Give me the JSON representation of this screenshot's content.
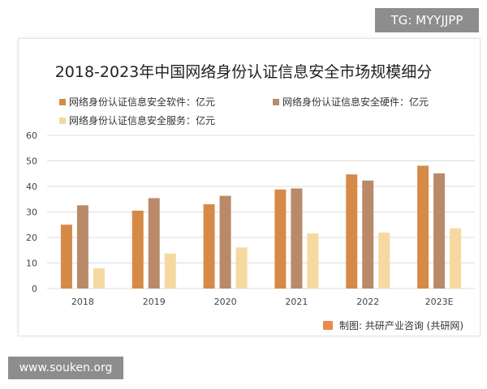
{
  "watermark_top": "TG: MYYJJPP",
  "watermark_bottom": "www.souken.org",
  "source": "制图: 共研产业咨询 (共研网)",
  "chart_data": {
    "type": "bar",
    "title": "2018-2023年中国网络身份认证信息安全市场规模细分",
    "categories": [
      "2018",
      "2019",
      "2020",
      "2021",
      "2022",
      "2023E"
    ],
    "series": [
      {
        "name": "网络身份认证信息安全软件：亿元",
        "color": "#d68a48",
        "values": [
          25,
          30.5,
          33,
          38.8,
          44.7,
          48.1
        ]
      },
      {
        "name": "网络身份认证信息安全硬件：亿元",
        "color": "#b98a6a",
        "values": [
          32.6,
          35.4,
          36.3,
          39.2,
          42.3,
          45.1
        ]
      },
      {
        "name": "网络身份认证信息安全服务：亿元",
        "color": "#f5d9a0",
        "values": [
          7.9,
          13.7,
          16.1,
          21.6,
          21.9,
          23.6
        ]
      }
    ],
    "ylim": [
      0,
      60
    ],
    "yticks": [
      0,
      10,
      20,
      30,
      40,
      50,
      60
    ],
    "grid": true,
    "legend": "top"
  }
}
